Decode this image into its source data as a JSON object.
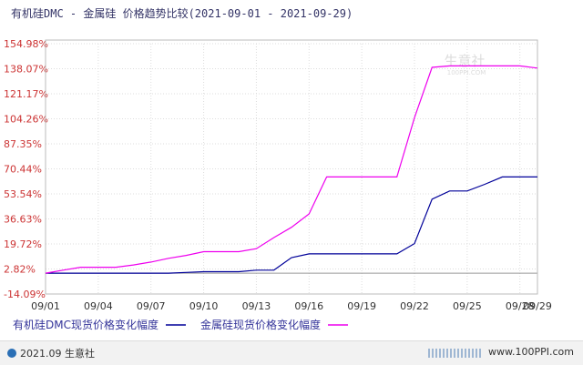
{
  "title": "有机硅DMC - 金属硅 价格趋势比较(2021-09-01 - 2021-09-29)",
  "watermark": {
    "text": "生意社",
    "url": "100PPI.COM"
  },
  "footer": {
    "copyright": "2021.09 生意社",
    "site": "www.100PPI.com"
  },
  "colors": {
    "axis": "#333399",
    "grid": "#dddddd",
    "ylabel": "#cc3333",
    "series1": "#000099",
    "series2": "#ee00ee"
  },
  "chart_data": {
    "type": "line",
    "title": "有机硅DMC - 金属硅 价格趋势比较(2021-09-01 - 2021-09-29)",
    "xlabel": "",
    "ylabel": "",
    "x_ticks": [
      "09/01",
      "09/04",
      "09/07",
      "09/10",
      "09/13",
      "09/16",
      "09/19",
      "09/22",
      "09/25",
      "09/28",
      "09/29"
    ],
    "y_ticks": [
      "154.98%",
      "138.07%",
      "121.17%",
      "104.26%",
      "87.35%",
      "70.44%",
      "53.54%",
      "36.63%",
      "19.72%",
      "2.82%",
      "-14.09%"
    ],
    "ylim": [
      -14.09,
      154.98
    ],
    "xlim": [
      "09/01",
      "09/29"
    ],
    "grid": true,
    "legend_position": "bottom-left",
    "series": [
      {
        "name": "有机硅DMC现货价格变化幅度",
        "points": [
          [
            "09/01",
            0
          ],
          [
            "09/02",
            0
          ],
          [
            "09/03",
            0
          ],
          [
            "09/04",
            0
          ],
          [
            "09/05",
            0
          ],
          [
            "09/06",
            0
          ],
          [
            "09/07",
            0
          ],
          [
            "09/08",
            0
          ],
          [
            "09/09",
            0.5
          ],
          [
            "09/10",
            1.0
          ],
          [
            "09/11",
            1.0
          ],
          [
            "09/12",
            1.0
          ],
          [
            "09/13",
            2.0
          ],
          [
            "09/14",
            2.0
          ],
          [
            "09/15",
            10.5
          ],
          [
            "09/16",
            13.0
          ],
          [
            "09/17",
            13.0
          ],
          [
            "09/18",
            13.0
          ],
          [
            "09/19",
            13.0
          ],
          [
            "09/20",
            13.0
          ],
          [
            "09/21",
            13.0
          ],
          [
            "09/22",
            20.0
          ],
          [
            "09/23",
            50.0
          ],
          [
            "09/24",
            55.5
          ],
          [
            "09/25",
            55.5
          ],
          [
            "09/26",
            60.0
          ],
          [
            "09/27",
            65.0
          ],
          [
            "09/28",
            65.0
          ],
          [
            "09/29",
            65.0
          ]
        ]
      },
      {
        "name": "金属硅现货价格变化幅度",
        "points": [
          [
            "09/01",
            0
          ],
          [
            "09/02",
            2.0
          ],
          [
            "09/03",
            4.0
          ],
          [
            "09/04",
            4.0
          ],
          [
            "09/05",
            4.0
          ],
          [
            "09/06",
            5.5
          ],
          [
            "09/07",
            7.5
          ],
          [
            "09/08",
            10.0
          ],
          [
            "09/09",
            12.0
          ],
          [
            "09/10",
            14.5
          ],
          [
            "09/11",
            14.5
          ],
          [
            "09/12",
            14.5
          ],
          [
            "09/13",
            16.5
          ],
          [
            "09/14",
            24.0
          ],
          [
            "09/15",
            31.0
          ],
          [
            "09/16",
            40.0
          ],
          [
            "09/17",
            65.0
          ],
          [
            "09/18",
            65.0
          ],
          [
            "09/19",
            65.0
          ],
          [
            "09/20",
            65.0
          ],
          [
            "09/21",
            65.0
          ],
          [
            "09/22",
            105.0
          ],
          [
            "09/23",
            139.0
          ],
          [
            "09/24",
            140.0
          ],
          [
            "09/25",
            140.0
          ],
          [
            "09/26",
            140.0
          ],
          [
            "09/27",
            140.0
          ],
          [
            "09/28",
            140.0
          ],
          [
            "09/29",
            138.5
          ]
        ]
      }
    ]
  }
}
